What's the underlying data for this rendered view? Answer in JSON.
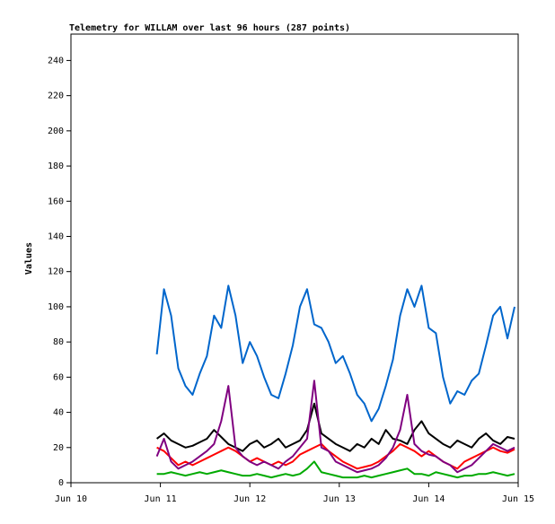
{
  "chart_data": {
    "type": "line",
    "title": "Telemetry for WILLAM over last 96 hours (287 points)",
    "y_label": "Values",
    "xlim": [
      10,
      15
    ],
    "xticks": [
      {
        "value": 10,
        "label": "Jun 10"
      },
      {
        "value": 11,
        "label": "Jun 11"
      },
      {
        "value": 12,
        "label": "Jun 12"
      },
      {
        "value": 13,
        "label": "Jun 13"
      },
      {
        "value": 14,
        "label": "Jun 14"
      },
      {
        "value": 15,
        "label": "Jun 15"
      }
    ],
    "ylim": [
      0,
      255
    ],
    "yticks": [
      0,
      20,
      40,
      60,
      80,
      100,
      120,
      140,
      160,
      180,
      200,
      220,
      240
    ],
    "grid": false,
    "x": [
      10.96,
      11.04,
      11.12,
      11.2,
      11.28,
      11.36,
      11.44,
      11.52,
      11.6,
      11.68,
      11.76,
      11.84,
      11.92,
      12.0,
      12.08,
      12.16,
      12.24,
      12.32,
      12.4,
      12.48,
      12.56,
      12.64,
      12.72,
      12.8,
      12.88,
      12.96,
      13.04,
      13.12,
      13.2,
      13.28,
      13.36,
      13.44,
      13.52,
      13.6,
      13.68,
      13.76,
      13.84,
      13.92,
      14.0,
      14.08,
      14.16,
      14.24,
      14.32,
      14.4,
      14.48,
      14.56,
      14.64,
      14.72,
      14.8,
      14.88,
      14.96
    ],
    "series": [
      {
        "color": "#0066cc",
        "values": [
          73,
          110,
          95,
          65,
          55,
          50,
          62,
          72,
          95,
          88,
          112,
          95,
          68,
          80,
          72,
          60,
          50,
          48,
          62,
          78,
          100,
          110,
          90,
          88,
          80,
          68,
          72,
          62,
          50,
          45,
          35,
          42,
          55,
          70,
          95,
          110,
          100,
          112,
          88,
          85,
          60,
          45,
          52,
          50,
          58,
          62,
          78,
          95,
          100,
          82,
          100
        ]
      },
      {
        "color": "#000000",
        "values": [
          25,
          28,
          24,
          22,
          20,
          21,
          23,
          25,
          30,
          26,
          22,
          20,
          18,
          22,
          24,
          20,
          22,
          25,
          20,
          22,
          24,
          30,
          45,
          28,
          25,
          22,
          20,
          18,
          22,
          20,
          25,
          22,
          30,
          25,
          24,
          22,
          30,
          35,
          28,
          25,
          22,
          20,
          24,
          22,
          20,
          25,
          28,
          24,
          22,
          26,
          25
        ]
      },
      {
        "color": "#ff0000",
        "values": [
          20,
          18,
          14,
          10,
          12,
          10,
          12,
          14,
          16,
          18,
          20,
          18,
          15,
          12,
          14,
          12,
          10,
          12,
          10,
          12,
          16,
          18,
          20,
          22,
          18,
          15,
          12,
          10,
          8,
          9,
          10,
          12,
          15,
          18,
          22,
          20,
          18,
          15,
          18,
          15,
          12,
          10,
          8,
          12,
          14,
          16,
          18,
          20,
          18,
          17,
          19
        ]
      },
      {
        "color": "#800080",
        "values": [
          15,
          25,
          12,
          8,
          10,
          12,
          15,
          18,
          22,
          35,
          55,
          20,
          15,
          12,
          10,
          12,
          10,
          8,
          12,
          15,
          20,
          25,
          58,
          20,
          18,
          12,
          10,
          8,
          6,
          7,
          8,
          10,
          14,
          20,
          30,
          50,
          22,
          18,
          16,
          15,
          12,
          10,
          6,
          8,
          10,
          14,
          18,
          22,
          20,
          18,
          20
        ]
      },
      {
        "color": "#00aa00",
        "values": [
          5,
          5,
          6,
          5,
          4,
          5,
          6,
          5,
          6,
          7,
          6,
          5,
          4,
          4,
          5,
          4,
          3,
          4,
          5,
          4,
          5,
          8,
          12,
          6,
          5,
          4,
          3,
          3,
          3,
          4,
          3,
          4,
          5,
          6,
          7,
          8,
          5,
          5,
          4,
          6,
          5,
          4,
          3,
          4,
          4,
          5,
          5,
          6,
          5,
          4,
          5
        ]
      }
    ]
  }
}
